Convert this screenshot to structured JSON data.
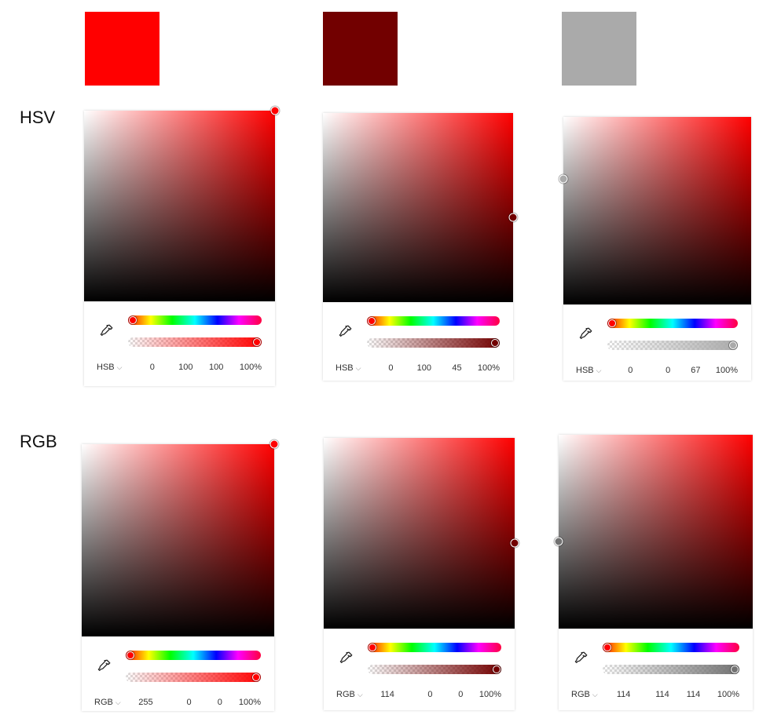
{
  "swatches": [
    {
      "color": "#ff0000"
    },
    {
      "color": "#720000"
    },
    {
      "color": "#aaaaaa"
    }
  ],
  "row_labels": {
    "hsv": "HSV",
    "rgb": "RGB"
  },
  "pickers": [
    {
      "mode": "HSB",
      "values": [
        "0",
        "100",
        "100",
        "100%"
      ],
      "color": "#ff0000",
      "saturation": 1.0,
      "brightness": 1.0,
      "hue": 0.0,
      "alpha": 1.0
    },
    {
      "mode": "HSB",
      "values": [
        "0",
        "100",
        "45",
        "100%"
      ],
      "color": "#720000",
      "saturation": 1.0,
      "brightness": 0.45,
      "hue": 0.0,
      "alpha": 1.0
    },
    {
      "mode": "HSB",
      "values": [
        "0",
        "0",
        "67",
        "100%"
      ],
      "color": "#aaaaaa",
      "saturation": 0.0,
      "brightness": 0.67,
      "hue": 0.0,
      "alpha": 1.0
    },
    {
      "mode": "RGB",
      "values": [
        "255",
        "0",
        "0",
        "100%"
      ],
      "color": "#ff0000",
      "saturation": 1.0,
      "brightness": 1.0,
      "hue": 0.0,
      "alpha": 1.0
    },
    {
      "mode": "RGB",
      "values": [
        "114",
        "0",
        "0",
        "100%"
      ],
      "color": "#720000",
      "saturation": 1.0,
      "brightness": 0.45,
      "hue": 0.0,
      "alpha": 1.0
    },
    {
      "mode": "RGB",
      "values": [
        "114",
        "114",
        "114",
        "100%"
      ],
      "color": "#727272",
      "saturation": 0.0,
      "brightness": 0.45,
      "hue": 0.0,
      "alpha": 1.0
    }
  ]
}
